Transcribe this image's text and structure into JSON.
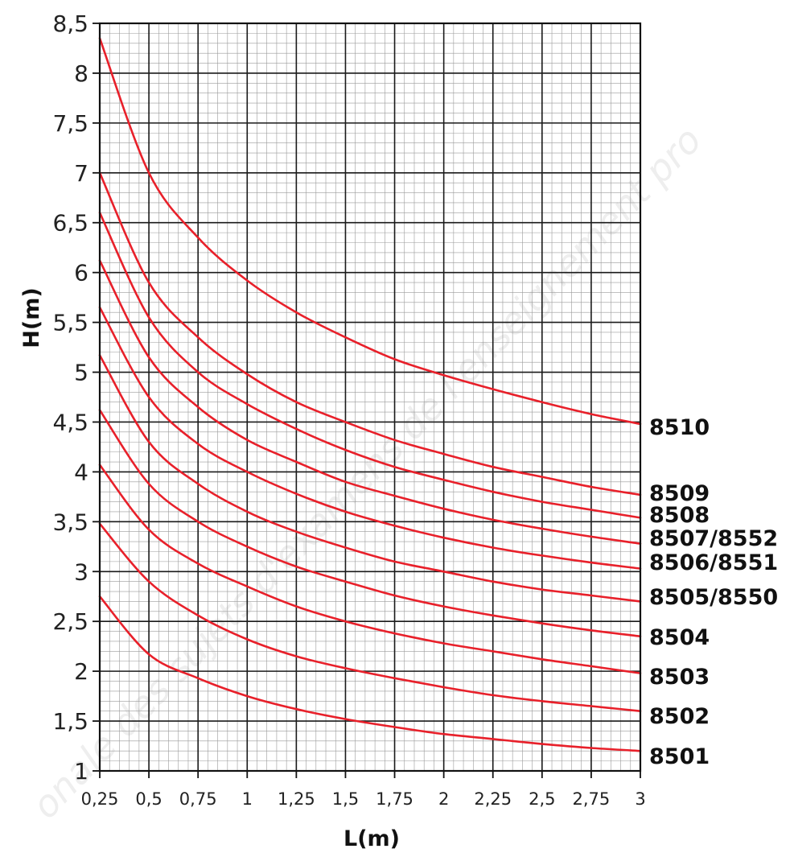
{
  "chart_data": {
    "type": "line",
    "title": "",
    "xlabel": "L(m)",
    "ylabel": "H(m)",
    "xlim": [
      0.25,
      3
    ],
    "ylim": [
      1,
      8.5
    ],
    "grid": true,
    "legend": "inline-right",
    "line_color": "#e8202a",
    "x_ticks": [
      0.25,
      0.5,
      0.75,
      1,
      1.25,
      1.5,
      1.75,
      2,
      2.25,
      2.5,
      2.75,
      3
    ],
    "x_tick_labels": [
      "0,25",
      "0,5",
      "0,75",
      "1",
      "1,25",
      "1,5",
      "1,75",
      "2",
      "2,25",
      "2,5",
      "2,75",
      "3"
    ],
    "y_ticks": [
      1,
      1.5,
      2,
      2.5,
      3,
      3.5,
      4,
      4.5,
      5,
      5.5,
      6,
      6.5,
      7,
      7.5,
      8,
      8.5
    ],
    "y_tick_labels": [
      "1",
      "1,5",
      "2",
      "2,5",
      "3",
      "3,5",
      "4",
      "4,5",
      "5",
      "5,5",
      "6",
      "6,5",
      "7",
      "7,5",
      "8",
      "8,5"
    ],
    "x": [
      0.25,
      0.5,
      0.75,
      1,
      1.25,
      1.5,
      1.75,
      2,
      2.25,
      2.5,
      2.75,
      3
    ],
    "series": [
      {
        "name": "8510",
        "values": [
          8.35,
          7.0,
          6.35,
          5.92,
          5.6,
          5.35,
          5.13,
          4.97,
          4.83,
          4.7,
          4.58,
          4.48
        ]
      },
      {
        "name": "8509",
        "values": [
          7.0,
          5.9,
          5.35,
          4.98,
          4.7,
          4.5,
          4.32,
          4.18,
          4.05,
          3.95,
          3.85,
          3.77
        ]
      },
      {
        "name": "8508",
        "values": [
          6.6,
          5.55,
          5.0,
          4.68,
          4.43,
          4.22,
          4.05,
          3.92,
          3.8,
          3.7,
          3.62,
          3.54
        ]
      },
      {
        "name": "8507/8552",
        "values": [
          6.12,
          5.15,
          4.65,
          4.32,
          4.1,
          3.9,
          3.76,
          3.63,
          3.52,
          3.43,
          3.35,
          3.28
        ]
      },
      {
        "name": "8506/8551",
        "values": [
          5.65,
          4.75,
          4.28,
          4.0,
          3.78,
          3.6,
          3.46,
          3.34,
          3.24,
          3.16,
          3.09,
          3.03
        ]
      },
      {
        "name": "8505/8550",
        "values": [
          5.17,
          4.3,
          3.88,
          3.6,
          3.4,
          3.24,
          3.1,
          3.0,
          2.9,
          2.82,
          2.76,
          2.7
        ]
      },
      {
        "name": "8504",
        "values": [
          4.62,
          3.88,
          3.5,
          3.25,
          3.05,
          2.9,
          2.76,
          2.65,
          2.56,
          2.48,
          2.41,
          2.35
        ]
      },
      {
        "name": "8503",
        "values": [
          4.07,
          3.42,
          3.08,
          2.85,
          2.65,
          2.5,
          2.38,
          2.28,
          2.2,
          2.12,
          2.05,
          1.98
        ]
      },
      {
        "name": "8502",
        "values": [
          3.48,
          2.9,
          2.56,
          2.32,
          2.15,
          2.03,
          1.93,
          1.84,
          1.76,
          1.7,
          1.65,
          1.6
        ]
      },
      {
        "name": "8501",
        "values": [
          2.75,
          2.17,
          1.93,
          1.75,
          1.62,
          1.52,
          1.44,
          1.37,
          1.32,
          1.27,
          1.23,
          1.2
        ]
      }
    ]
  }
}
